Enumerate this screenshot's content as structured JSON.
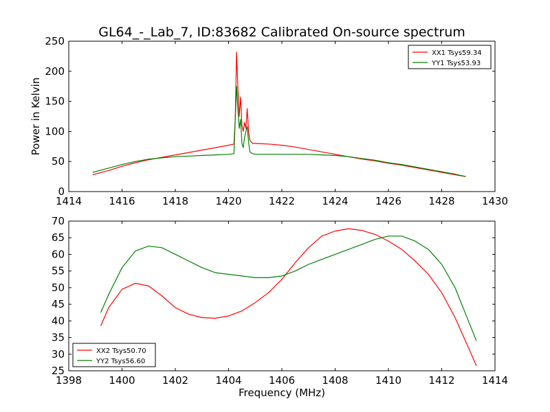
{
  "figure_title": "GL64_-_Lab_7, ID:83682 Calibrated On-source spectrum",
  "chart_data": [
    {
      "type": "line",
      "title": "GL64_-_Lab_7, ID:83682 Calibrated On-source spectrum",
      "xlabel": "",
      "ylabel": "Power in Kelvin",
      "xlim": [
        1414,
        1430
      ],
      "ylim": [
        0,
        250
      ],
      "xticks": [
        1414,
        1416,
        1418,
        1420,
        1422,
        1424,
        1426,
        1428,
        1430
      ],
      "yticks": [
        0,
        50,
        100,
        150,
        200,
        250
      ],
      "grid": false,
      "legend_position": "top-right",
      "series": [
        {
          "name": "XX1 Tsys59.34",
          "color": "#ff0000",
          "x": [
            1414.9,
            1415.5,
            1416.0,
            1416.5,
            1417.0,
            1417.5,
            1418.0,
            1418.5,
            1419.0,
            1419.5,
            1420.0,
            1420.2,
            1420.25,
            1420.3,
            1420.35,
            1420.4,
            1420.45,
            1420.5,
            1420.55,
            1420.6,
            1420.65,
            1420.7,
            1420.75,
            1420.8,
            1420.9,
            1421.0,
            1421.5,
            1422.0,
            1422.5,
            1423.0,
            1423.5,
            1424.0,
            1424.5,
            1425.0,
            1425.5,
            1426.0,
            1426.5,
            1427.0,
            1427.5,
            1428.0,
            1428.5,
            1428.9
          ],
          "y": [
            28,
            35,
            42,
            48,
            53,
            57,
            61,
            65,
            69,
            73,
            77,
            79,
            120,
            232,
            170,
            125,
            157,
            110,
            100,
            115,
            105,
            138,
            100,
            85,
            80,
            80,
            79,
            77,
            74,
            70,
            66,
            62,
            58,
            54,
            51,
            47,
            44,
            40,
            36,
            32,
            28,
            25
          ]
        },
        {
          "name": "YY1 Tsys53.93",
          "color": "#008000",
          "x": [
            1414.9,
            1415.5,
            1416.0,
            1416.5,
            1417.0,
            1417.5,
            1418.0,
            1418.5,
            1419.0,
            1419.5,
            1420.0,
            1420.2,
            1420.25,
            1420.3,
            1420.35,
            1420.4,
            1420.45,
            1420.5,
            1420.55,
            1420.6,
            1420.65,
            1420.7,
            1420.75,
            1420.8,
            1420.9,
            1421.0,
            1421.5,
            1422.0,
            1422.5,
            1423.0,
            1423.5,
            1424.0,
            1424.5,
            1425.0,
            1425.5,
            1426.0,
            1426.5,
            1427.0,
            1427.5,
            1428.0,
            1428.5,
            1428.9
          ],
          "y": [
            32,
            39,
            45,
            50,
            54,
            56,
            58,
            59,
            60,
            61,
            62,
            63,
            120,
            175,
            135,
            105,
            120,
            80,
            73,
            90,
            100,
            108,
            82,
            66,
            63,
            62,
            62,
            62,
            62,
            62,
            61,
            60,
            58,
            55,
            52,
            48,
            45,
            41,
            37,
            33,
            29,
            25
          ]
        }
      ]
    },
    {
      "type": "line",
      "title": "",
      "xlabel": "Frequency (MHz)",
      "ylabel": "",
      "xlim": [
        1398,
        1414
      ],
      "ylim": [
        25,
        70
      ],
      "xticks": [
        1398,
        1400,
        1402,
        1404,
        1406,
        1408,
        1410,
        1412,
        1414
      ],
      "yticks": [
        25,
        30,
        35,
        40,
        45,
        50,
        55,
        60,
        65,
        70
      ],
      "grid": false,
      "legend_position": "bottom-left",
      "series": [
        {
          "name": "XX2 Tsys50.70",
          "color": "#ff0000",
          "x": [
            1399.2,
            1399.5,
            1400.0,
            1400.5,
            1401.0,
            1401.5,
            1402.0,
            1402.5,
            1403.0,
            1403.5,
            1404.0,
            1404.5,
            1405.0,
            1405.5,
            1406.0,
            1406.5,
            1407.0,
            1407.5,
            1408.0,
            1408.5,
            1409.0,
            1409.5,
            1410.0,
            1410.5,
            1411.0,
            1411.5,
            1412.0,
            1412.5,
            1413.0,
            1413.3
          ],
          "y": [
            38.5,
            44,
            49.5,
            51.3,
            50.5,
            47.5,
            44,
            42,
            41,
            40.8,
            41.5,
            43,
            45.5,
            48.5,
            52.5,
            57.5,
            62,
            65.5,
            67,
            67.7,
            67.2,
            66,
            64,
            61.5,
            58,
            54,
            48.5,
            41,
            32,
            26.5
          ]
        },
        {
          "name": "YY2 Tsys56.60",
          "color": "#008000",
          "x": [
            1399.2,
            1399.5,
            1400.0,
            1400.5,
            1401.0,
            1401.5,
            1402.0,
            1402.5,
            1403.0,
            1403.5,
            1404.0,
            1404.5,
            1405.0,
            1405.5,
            1406.0,
            1406.5,
            1407.0,
            1407.5,
            1408.0,
            1408.5,
            1409.0,
            1409.5,
            1410.0,
            1410.5,
            1411.0,
            1411.5,
            1412.0,
            1412.5,
            1413.0,
            1413.3
          ],
          "y": [
            42.5,
            48,
            56,
            61,
            62.5,
            62,
            60,
            58,
            56,
            54.5,
            54,
            53.5,
            53,
            53,
            53.5,
            55,
            57,
            58.5,
            60,
            61.5,
            63,
            64.5,
            65.5,
            65.5,
            64,
            61.5,
            57,
            50,
            40,
            34
          ]
        }
      ]
    }
  ]
}
